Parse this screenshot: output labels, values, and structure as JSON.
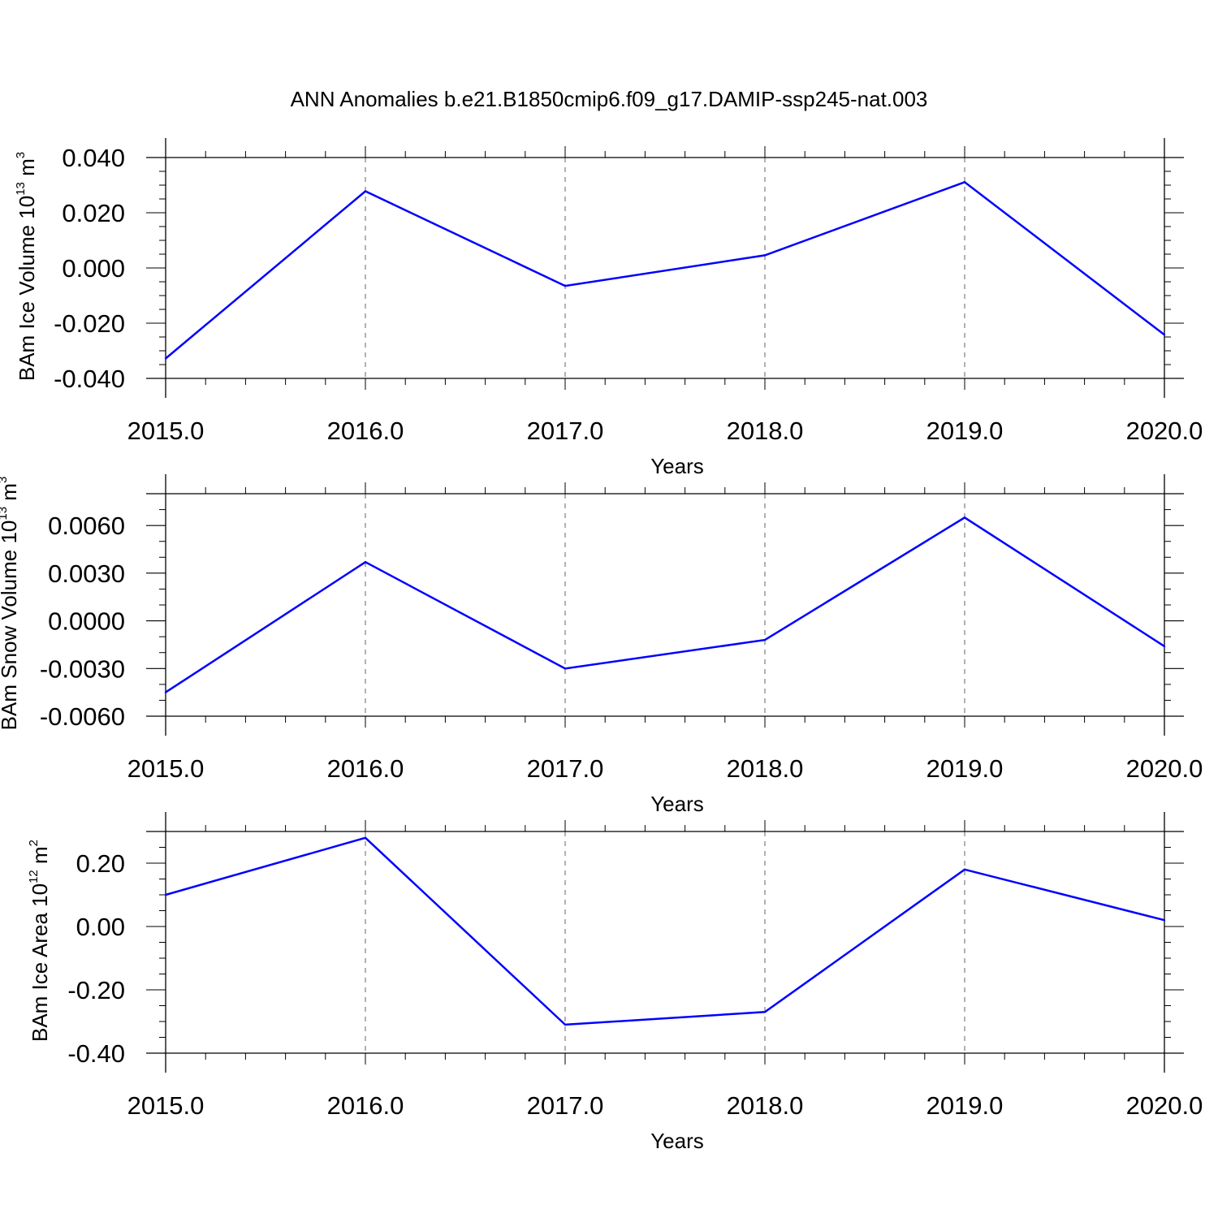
{
  "figure": {
    "title": "ANN Anomalies b.e21.B1850cmip6.f09_g17.DAMIP-ssp245-nat.003",
    "line_color": "#0000ff"
  },
  "chart_data": [
    {
      "type": "line",
      "title": "",
      "xlabel": "Years",
      "ylabel": "BAm Ice Volume 10¹³ m³",
      "ylabel_parts": {
        "main": "BAm Ice Volume 10",
        "exp": "13",
        "unit": " m",
        "unit_exp": "3"
      },
      "x": [
        2015.0,
        2016.0,
        2017.0,
        2018.0,
        2019.0,
        2020.0
      ],
      "series": [
        {
          "values": [
            -0.0328,
            0.0278,
            -0.0065,
            0.0046,
            0.0311,
            -0.0242
          ]
        }
      ],
      "xlim": [
        2015.0,
        2020.0
      ],
      "ylim": [
        -0.04,
        0.04
      ],
      "xticks": [
        2015.0,
        2016.0,
        2017.0,
        2018.0,
        2019.0,
        2020.0
      ],
      "xtick_labels": [
        "2015.0",
        "2016.0",
        "2017.0",
        "2018.0",
        "2019.0",
        "2020.0"
      ],
      "yticks": [
        -0.04,
        -0.02,
        0.0,
        0.02,
        0.04
      ],
      "ytick_labels": [
        "-0.040",
        "-0.020",
        "0.000",
        "0.020",
        "0.040"
      ],
      "yminor_step": 0.005,
      "grid": "vertical dashed at major x ticks"
    },
    {
      "type": "line",
      "title": "",
      "xlabel": "Years",
      "ylabel": "BAm Snow Volume 10¹³ m³",
      "ylabel_parts": {
        "main": "BAm Snow Volume 10",
        "exp": "13",
        "unit": " m",
        "unit_exp": "3"
      },
      "x": [
        2015.0,
        2016.0,
        2017.0,
        2018.0,
        2019.0,
        2020.0
      ],
      "series": [
        {
          "values": [
            -0.0045,
            0.0037,
            -0.003,
            -0.0012,
            0.0065,
            -0.0016
          ]
        }
      ],
      "xlim": [
        2015.0,
        2020.0
      ],
      "ylim": [
        -0.006,
        0.008
      ],
      "xticks": [
        2015.0,
        2016.0,
        2017.0,
        2018.0,
        2019.0,
        2020.0
      ],
      "xtick_labels": [
        "2015.0",
        "2016.0",
        "2017.0",
        "2018.0",
        "2019.0",
        "2020.0"
      ],
      "yticks": [
        -0.006,
        -0.003,
        0.0,
        0.003,
        0.006
      ],
      "ytick_labels": [
        "-0.0060",
        "-0.0030",
        "0.0000",
        "0.0030",
        "0.0060"
      ],
      "yminor_step": 0.001,
      "grid": "vertical dashed at major x ticks"
    },
    {
      "type": "line",
      "title": "",
      "xlabel": "Years",
      "ylabel": "BAm Ice Area 10¹² m²",
      "ylabel_parts": {
        "main": "BAm Ice Area 10",
        "exp": "12",
        "unit": " m",
        "unit_exp": "2"
      },
      "x": [
        2015.0,
        2016.0,
        2017.0,
        2018.0,
        2019.0,
        2020.0
      ],
      "series": [
        {
          "values": [
            0.1,
            0.28,
            -0.31,
            -0.27,
            0.18,
            0.02
          ]
        }
      ],
      "xlim": [
        2015.0,
        2020.0
      ],
      "ylim": [
        -0.4,
        0.3
      ],
      "xticks": [
        2015.0,
        2016.0,
        2017.0,
        2018.0,
        2019.0,
        2020.0
      ],
      "xtick_labels": [
        "2015.0",
        "2016.0",
        "2017.0",
        "2018.0",
        "2019.0",
        "2020.0"
      ],
      "yticks": [
        -0.4,
        -0.2,
        0.0,
        0.2
      ],
      "ytick_labels": [
        "-0.40",
        "-0.20",
        "0.00",
        "0.20"
      ],
      "yminor_step": 0.05,
      "grid": "vertical dashed at major x ticks"
    }
  ]
}
